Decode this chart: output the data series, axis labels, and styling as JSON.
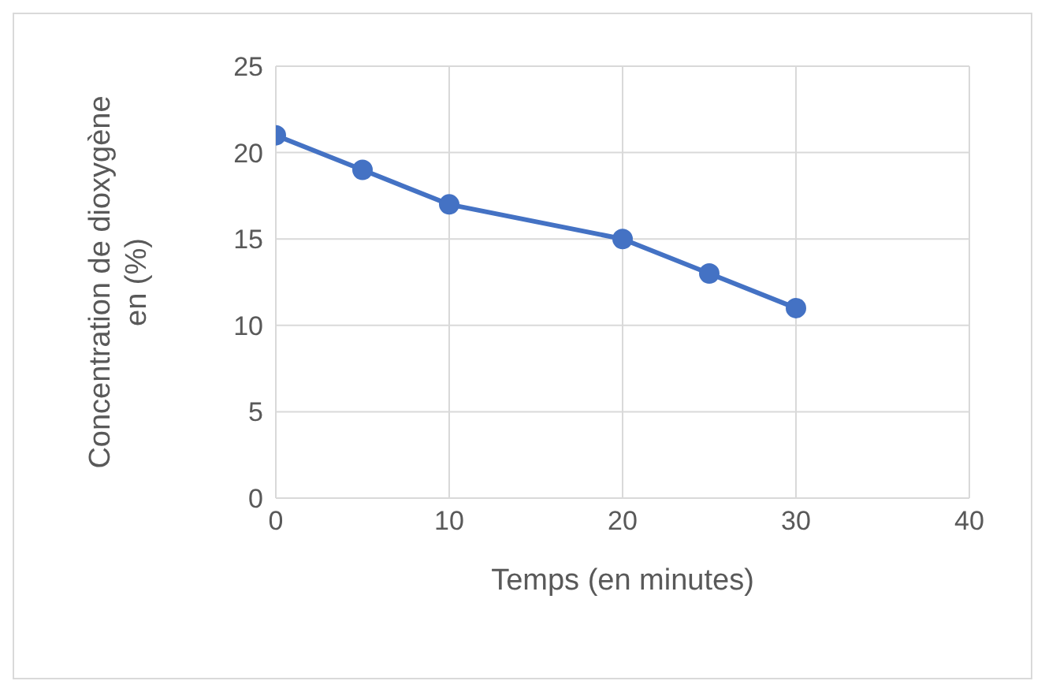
{
  "chart_data": {
    "type": "line",
    "xlabel": "Temps (en minutes)",
    "ylabel": "Concentration de dioxygène en (%)",
    "x": [
      0,
      5,
      10,
      20,
      25,
      30
    ],
    "series": [
      {
        "color": "#4472c4",
        "values": [
          21,
          19,
          17,
          15,
          13,
          11
        ]
      }
    ],
    "xlim": [
      0,
      40
    ],
    "xticks": [
      0,
      10,
      20,
      30,
      40
    ],
    "ylim": [
      0,
      25
    ],
    "yticks": [
      0,
      5,
      10,
      15,
      20,
      25
    ],
    "grid": true,
    "marker": "circle",
    "line_style": "solid",
    "legend": false
  }
}
